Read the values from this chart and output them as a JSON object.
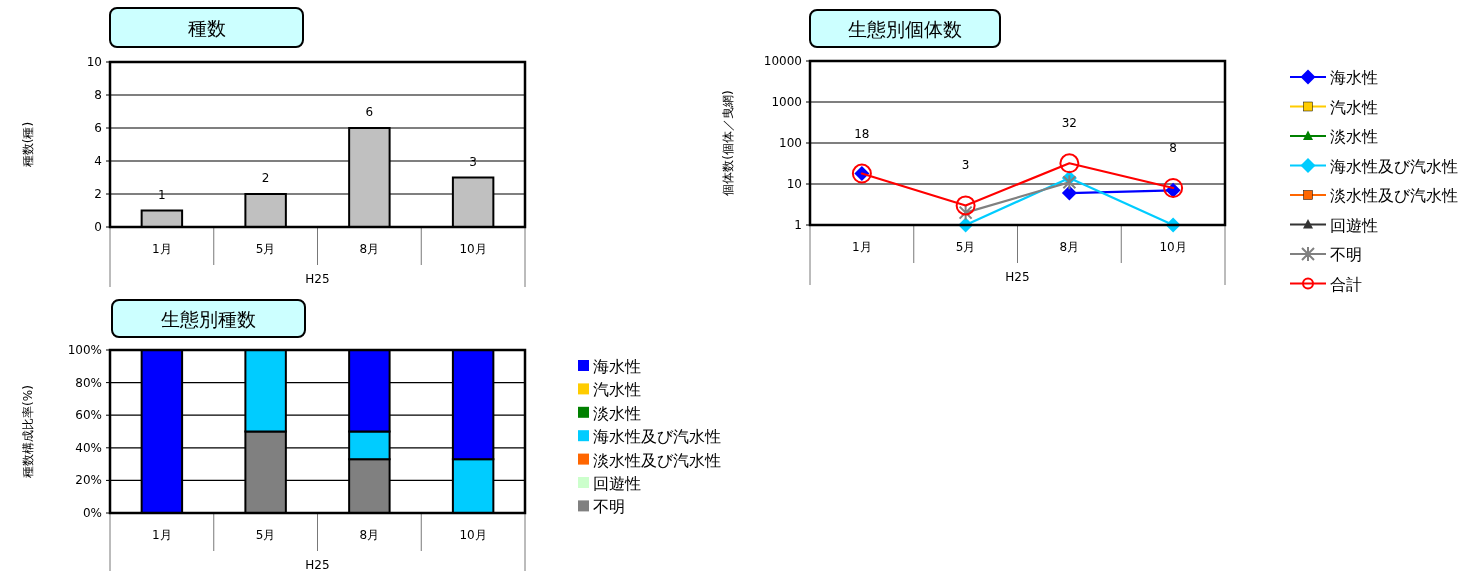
{
  "chart_data": [
    {
      "type": "bar",
      "title": "種数",
      "ylabel": "種数(種)",
      "xlabel": "H25",
      "categories": [
        "1月",
        "5月",
        "8月",
        "10月"
      ],
      "values": [
        1,
        2,
        6,
        3
      ],
      "color": "#c0c0c0",
      "data_labels": true,
      "ylim": [
        0,
        10
      ],
      "yticks": [
        0,
        2,
        4,
        6,
        8,
        10
      ],
      "grid": "y"
    },
    {
      "type": "line",
      "title": "生態別個体数",
      "ylabel": "個体数(個体／曳網)",
      "xlabel": "H25",
      "categories": [
        "1月",
        "5月",
        "8月",
        "10月"
      ],
      "log": "y",
      "ylim": [
        1,
        10000
      ],
      "yticks": [
        1,
        10,
        100,
        1000,
        10000
      ],
      "grid": "y",
      "legend": "right",
      "series": [
        {
          "name": "海水性",
          "color": "#0000ff",
          "marker": "diamond",
          "values": [
            18,
            null,
            6,
            7
          ]
        },
        {
          "name": "汽水性",
          "color": "#ffcc00",
          "marker": "square",
          "values": [
            null,
            null,
            null,
            null
          ]
        },
        {
          "name": "淡水性",
          "color": "#008000",
          "marker": "triangle",
          "values": [
            null,
            null,
            null,
            null
          ]
        },
        {
          "name": "海水性及び汽水性",
          "color": "#00ccff",
          "marker": "diamond",
          "values": [
            null,
            1,
            14,
            1
          ]
        },
        {
          "name": "淡水性及び汽水性",
          "color": "#ff6600",
          "marker": "square",
          "values": [
            null,
            null,
            null,
            null
          ]
        },
        {
          "name": "回遊性",
          "color": "#333333",
          "marker": "triangle",
          "values": [
            null,
            null,
            null,
            null
          ]
        },
        {
          "name": "不明",
          "color": "#808080",
          "marker": "cross",
          "values": [
            null,
            2,
            11,
            null
          ]
        },
        {
          "name": "合計",
          "color": "#ff0000",
          "marker": "circle",
          "values": [
            18,
            3,
            32,
            8
          ],
          "value_labels": [
            "18",
            "3",
            "32",
            "8"
          ]
        }
      ]
    },
    {
      "type": "bar",
      "stacked": true,
      "title": "生態別種数",
      "ylabel": "種数構成比率(%)",
      "xlabel": "H25",
      "categories": [
        "1月",
        "5月",
        "8月",
        "10月"
      ],
      "ylim": [
        0,
        100
      ],
      "yticks": [
        {
          "value": 0,
          "label": "0%"
        },
        {
          "value": 20,
          "label": "20%"
        },
        {
          "value": 40,
          "label": "40%"
        },
        {
          "value": 60,
          "label": "60%"
        },
        {
          "value": 80,
          "label": "80%"
        },
        {
          "value": 100,
          "label": "100%"
        }
      ],
      "grid": "y",
      "legend": "right",
      "series": [
        {
          "name": "不明",
          "color": "#808080",
          "values": [
            0,
            50,
            33,
            0
          ]
        },
        {
          "name": "回遊性",
          "color": "#ccffcc",
          "values": [
            0,
            0,
            0,
            0
          ]
        },
        {
          "name": "淡水性及び汽水性",
          "color": "#ff6600",
          "values": [
            0,
            0,
            0,
            0
          ]
        },
        {
          "name": "海水性及び汽水性",
          "color": "#00ccff",
          "values": [
            0,
            50,
            17,
            33
          ]
        },
        {
          "name": "淡水性",
          "color": "#008000",
          "values": [
            0,
            0,
            0,
            0
          ]
        },
        {
          "name": "汽水性",
          "color": "#ffcc00",
          "values": [
            0,
            0,
            0,
            0
          ]
        },
        {
          "name": "海水性",
          "color": "#0000ff",
          "values": [
            100,
            0,
            50,
            67
          ]
        }
      ]
    }
  ]
}
